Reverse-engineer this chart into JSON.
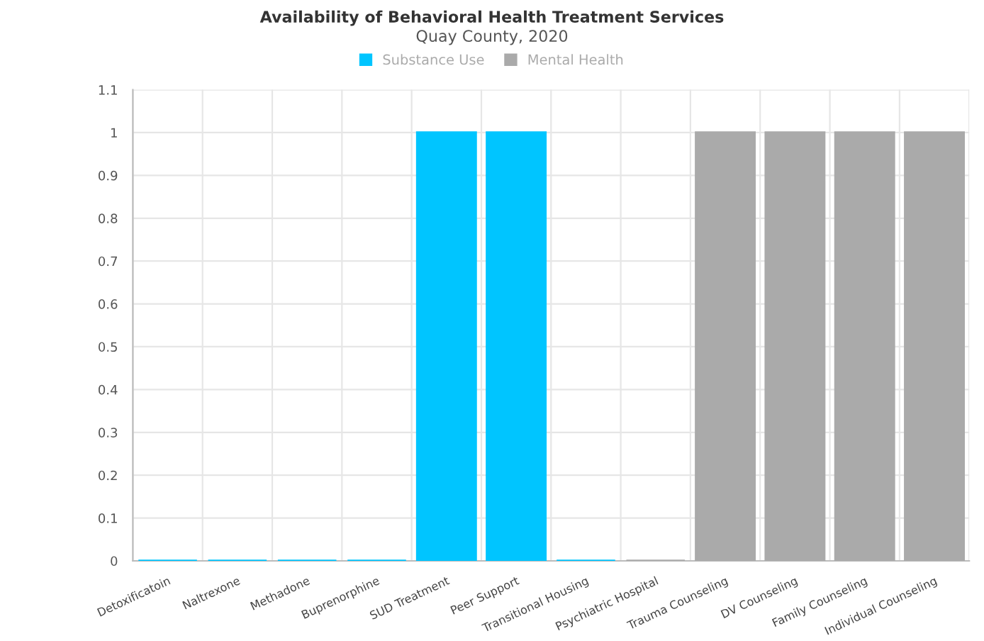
{
  "chart_data": {
    "type": "bar",
    "title": "Availability of Behavioral Health Treatment Services",
    "subtitle": "Quay County, 2020",
    "categories": [
      "Detoxificatoin",
      "Naltrexone",
      "Methadone",
      "Buprenorphine",
      "SUD Treatment",
      "Peer Support",
      "Transitional Housing",
      "Psychiatric Hospital",
      "Trauma Counseling",
      "DV Counseling",
      "Family Counseling",
      "Individual Counseling"
    ],
    "series": [
      {
        "name": "Substance Use",
        "color": "#00c5ff",
        "values": [
          0,
          0,
          0,
          0,
          1,
          1,
          0,
          null,
          null,
          null,
          null,
          null
        ]
      },
      {
        "name": "Mental Health",
        "color": "#aaaaaa",
        "values": [
          null,
          null,
          null,
          null,
          null,
          null,
          null,
          0,
          1,
          1,
          1,
          1
        ]
      }
    ],
    "ylim": [
      0,
      1.1
    ],
    "yticks": [
      0,
      0.1,
      0.2,
      0.3,
      0.4,
      0.5,
      0.6,
      0.7,
      0.8,
      0.9,
      1,
      1.1
    ],
    "grid": true,
    "legend": "top"
  }
}
